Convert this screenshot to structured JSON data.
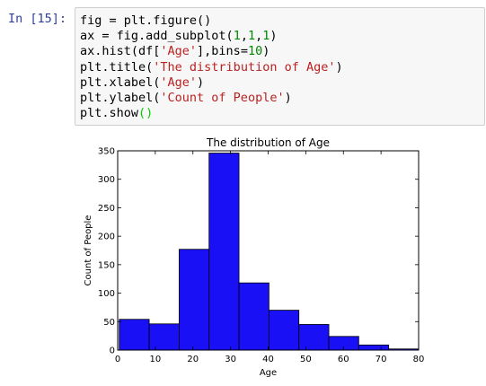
{
  "cell": {
    "prompt": "In [15]:",
    "code_lines": [
      [
        {
          "t": "fig = plt.figure()",
          "c": ""
        }
      ],
      [
        {
          "t": "ax = fig.add_subplot(",
          "c": ""
        },
        {
          "t": "1",
          "c": "num"
        },
        {
          "t": ",",
          "c": ""
        },
        {
          "t": "1",
          "c": "num"
        },
        {
          "t": ",",
          "c": ""
        },
        {
          "t": "1",
          "c": "num"
        },
        {
          "t": ")",
          "c": ""
        }
      ],
      [
        {
          "t": "ax.hist(df[",
          "c": ""
        },
        {
          "t": "'Age'",
          "c": "str"
        },
        {
          "t": "],bins=",
          "c": ""
        },
        {
          "t": "10",
          "c": "num"
        },
        {
          "t": ")",
          "c": ""
        }
      ],
      [
        {
          "t": "plt.title(",
          "c": ""
        },
        {
          "t": "'The distribution of Age'",
          "c": "str"
        },
        {
          "t": ")",
          "c": ""
        }
      ],
      [
        {
          "t": "plt.xlabel(",
          "c": ""
        },
        {
          "t": "'Age'",
          "c": "str"
        },
        {
          "t": ")",
          "c": ""
        }
      ],
      [
        {
          "t": "plt.ylabel(",
          "c": ""
        },
        {
          "t": "'Count of People'",
          "c": "str"
        },
        {
          "t": ")",
          "c": ""
        }
      ],
      [
        {
          "t": "plt.show",
          "c": ""
        },
        {
          "t": "()",
          "c": "paren"
        }
      ]
    ]
  },
  "colors": {
    "bar_fill": "#1a10f5",
    "bar_edge": "#000000",
    "prompt": "#303F9F",
    "string": "#BA2121",
    "number": "#008800",
    "paren_highlight": "#00cc00"
  },
  "chart_data": {
    "type": "bar",
    "title": "The distribution of Age",
    "xlabel": "Age",
    "ylabel": "Count of People",
    "xlim": [
      0,
      80
    ],
    "ylim": [
      0,
      350
    ],
    "xticks": [
      0,
      10,
      20,
      30,
      40,
      50,
      60,
      70,
      80
    ],
    "yticks": [
      0,
      50,
      100,
      150,
      200,
      250,
      300,
      350
    ],
    "bin_edges": [
      0.42,
      8.38,
      16.34,
      24.29,
      32.25,
      40.21,
      48.17,
      56.13,
      64.08,
      72.04,
      80.0
    ],
    "values": [
      54,
      46,
      177,
      346,
      118,
      70,
      45,
      24,
      9,
      2
    ],
    "grid": false
  }
}
